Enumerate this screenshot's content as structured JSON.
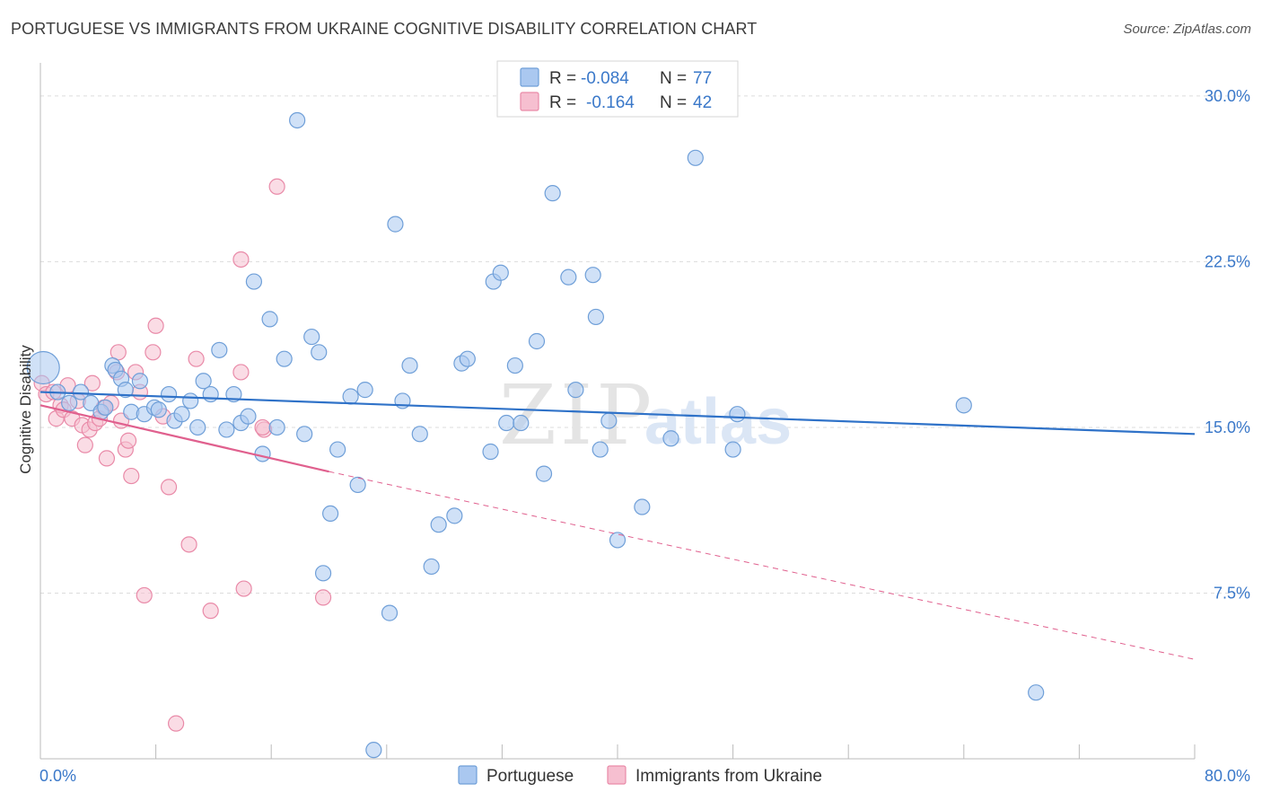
{
  "title": "PORTUGUESE VS IMMIGRANTS FROM UKRAINE COGNITIVE DISABILITY CORRELATION CHART",
  "source": "Source: ZipAtlas.com",
  "watermark": {
    "zip": "ZIP",
    "atlas": "atlas"
  },
  "colors": {
    "blue_fill": "#aac8f0",
    "blue_stroke": "#6f9fd8",
    "blue_line": "#2f72c8",
    "pink_fill": "#f6bfd0",
    "pink_stroke": "#e98aa8",
    "pink_line": "#e0608e",
    "tick_text": "#3a78c9",
    "grid": "#dcdcdc"
  },
  "legend": {
    "r_label": "R =",
    "n_label": "N =",
    "rows": [
      {
        "series": "Portuguese",
        "r": "-0.084",
        "n": "77",
        "color": "blue"
      },
      {
        "series": "Immigrants from Ukraine",
        "r": "-0.164",
        "n": "42",
        "color": "pink"
      }
    ]
  },
  "bottom_legend": [
    "Portuguese",
    "Immigrants from Ukraine"
  ],
  "chart_data": {
    "type": "scatter",
    "title": "PORTUGUESE VS IMMIGRANTS FROM UKRAINE COGNITIVE DISABILITY CORRELATION CHART",
    "xlabel": "",
    "ylabel": "Cognitive Disability",
    "xlim": [
      0,
      80
    ],
    "ylim": [
      0,
      31.5
    ],
    "x_tick_labels": [
      {
        "value": 0,
        "label": "0.0%"
      },
      {
        "value": 80,
        "label": "80.0%"
      }
    ],
    "y_tick_labels": [
      {
        "value": 7.5,
        "label": "7.5%"
      },
      {
        "value": 15,
        "label": "15.0%"
      },
      {
        "value": 22.5,
        "label": "22.5%"
      },
      {
        "value": 30,
        "label": "30.0%"
      }
    ],
    "grid": "horizontal dashed",
    "legend_position": "top-center",
    "series": [
      {
        "name": "Portuguese",
        "color": "blue",
        "trend": {
          "x": [
            0,
            80
          ],
          "y": [
            16.6,
            14.7
          ],
          "style": "solid"
        },
        "points": [
          [
            0.2,
            17.7
          ],
          [
            1.2,
            16.6
          ],
          [
            2.0,
            16.1
          ],
          [
            2.8,
            16.6
          ],
          [
            3.5,
            16.1
          ],
          [
            4.2,
            15.7
          ],
          [
            4.5,
            15.9
          ],
          [
            5.0,
            17.8
          ],
          [
            5.2,
            17.6
          ],
          [
            5.6,
            17.2
          ],
          [
            5.9,
            16.7
          ],
          [
            6.3,
            15.7
          ],
          [
            6.9,
            17.1
          ],
          [
            7.2,
            15.6
          ],
          [
            7.9,
            15.9
          ],
          [
            8.2,
            15.8
          ],
          [
            8.9,
            16.5
          ],
          [
            9.3,
            15.3
          ],
          [
            9.8,
            15.6
          ],
          [
            10.4,
            16.2
          ],
          [
            10.9,
            15.0
          ],
          [
            11.3,
            17.1
          ],
          [
            11.8,
            16.5
          ],
          [
            12.4,
            18.5
          ],
          [
            12.9,
            14.9
          ],
          [
            13.4,
            16.5
          ],
          [
            13.9,
            15.2
          ],
          [
            14.4,
            15.5
          ],
          [
            14.8,
            21.6
          ],
          [
            15.4,
            13.8
          ],
          [
            15.9,
            19.9
          ],
          [
            16.4,
            15.0
          ],
          [
            16.9,
            18.1
          ],
          [
            17.8,
            28.9
          ],
          [
            18.3,
            14.7
          ],
          [
            18.8,
            19.1
          ],
          [
            19.3,
            18.4
          ],
          [
            19.6,
            8.4
          ],
          [
            20.1,
            11.1
          ],
          [
            20.6,
            14.0
          ],
          [
            21.5,
            16.4
          ],
          [
            22.0,
            12.4
          ],
          [
            22.5,
            16.7
          ],
          [
            23.1,
            0.4
          ],
          [
            24.2,
            6.6
          ],
          [
            24.6,
            24.2
          ],
          [
            25.1,
            16.2
          ],
          [
            25.6,
            17.8
          ],
          [
            26.3,
            14.7
          ],
          [
            27.1,
            8.7
          ],
          [
            27.6,
            10.6
          ],
          [
            28.7,
            11.0
          ],
          [
            29.2,
            17.9
          ],
          [
            29.6,
            18.1
          ],
          [
            31.2,
            13.9
          ],
          [
            31.4,
            21.6
          ],
          [
            31.9,
            22.0
          ],
          [
            32.3,
            15.2
          ],
          [
            32.9,
            17.8
          ],
          [
            33.3,
            15.2
          ],
          [
            34.4,
            18.9
          ],
          [
            34.9,
            12.9
          ],
          [
            35.5,
            25.6
          ],
          [
            36.6,
            21.8
          ],
          [
            37.1,
            16.7
          ],
          [
            38.3,
            21.9
          ],
          [
            38.5,
            20.0
          ],
          [
            38.8,
            14.0
          ],
          [
            39.4,
            15.3
          ],
          [
            41.7,
            11.4
          ],
          [
            43.7,
            14.5
          ],
          [
            45.4,
            27.2
          ],
          [
            48.0,
            14.0
          ],
          [
            48.3,
            15.6
          ],
          [
            64.0,
            16.0
          ],
          [
            69.0,
            3.0
          ],
          [
            40.0,
            9.9
          ]
        ]
      },
      {
        "name": "Immigrants from Ukraine",
        "color": "pink",
        "trend": {
          "x": [
            0,
            20
          ],
          "y": [
            16.0,
            13.0
          ],
          "style": "solid",
          "extension": {
            "x": [
              20,
              80
            ],
            "y": [
              13.0,
              4.5
            ],
            "style": "dashed"
          }
        },
        "points": [
          [
            0.1,
            17.0
          ],
          [
            0.4,
            16.5
          ],
          [
            0.9,
            16.6
          ],
          [
            1.1,
            15.4
          ],
          [
            1.4,
            16.0
          ],
          [
            1.6,
            15.8
          ],
          [
            1.9,
            16.9
          ],
          [
            2.2,
            15.4
          ],
          [
            2.6,
            16.2
          ],
          [
            2.9,
            15.1
          ],
          [
            3.1,
            14.2
          ],
          [
            3.4,
            14.9
          ],
          [
            3.6,
            17.0
          ],
          [
            3.8,
            15.2
          ],
          [
            4.1,
            15.4
          ],
          [
            4.4,
            15.9
          ],
          [
            4.6,
            13.6
          ],
          [
            4.9,
            16.1
          ],
          [
            5.3,
            17.5
          ],
          [
            5.4,
            18.4
          ],
          [
            5.6,
            15.3
          ],
          [
            5.9,
            14.0
          ],
          [
            6.1,
            14.4
          ],
          [
            6.3,
            12.8
          ],
          [
            6.6,
            17.5
          ],
          [
            6.9,
            16.6
          ],
          [
            7.2,
            7.4
          ],
          [
            7.8,
            18.4
          ],
          [
            8.0,
            19.6
          ],
          [
            8.5,
            15.5
          ],
          [
            8.9,
            12.3
          ],
          [
            9.4,
            1.6
          ],
          [
            10.3,
            9.7
          ],
          [
            10.8,
            18.1
          ],
          [
            11.8,
            6.7
          ],
          [
            13.9,
            17.5
          ],
          [
            13.9,
            22.6
          ],
          [
            14.1,
            7.7
          ],
          [
            15.5,
            14.9
          ],
          [
            16.4,
            25.9
          ],
          [
            19.6,
            7.3
          ],
          [
            15.4,
            15.0
          ]
        ]
      }
    ]
  }
}
